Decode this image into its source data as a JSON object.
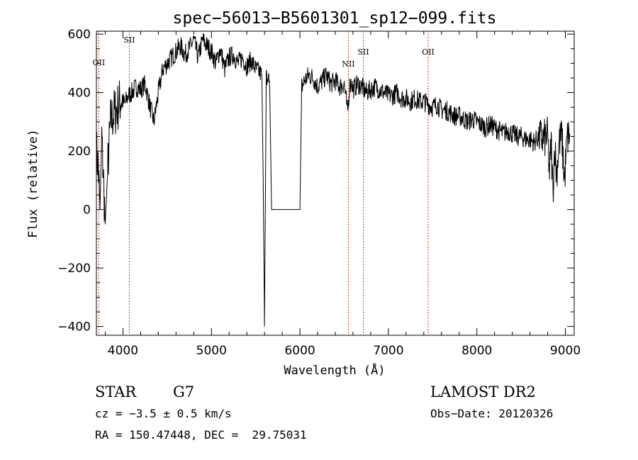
{
  "chart_data": {
    "type": "line",
    "title": "spec−56013−B5601301_sp12−099.fits",
    "xlabel": "Wavelength (Å)",
    "ylabel": "Flux (relative)",
    "xlim": [
      3700,
      9100
    ],
    "ylim": [
      -430,
      610
    ],
    "xticks": [
      4000,
      5000,
      6000,
      7000,
      8000,
      9000
    ],
    "xtick_labels": [
      "4000",
      "5000",
      "6000",
      "7000",
      "8000",
      "9000"
    ],
    "yticks": [
      -400,
      -200,
      0,
      200,
      400,
      600
    ],
    "ytick_labels": [
      "−400",
      "−200",
      "0",
      "200",
      "400",
      "600"
    ],
    "grid": false,
    "line_color": "#000000",
    "line_marker_color": "#cc3322",
    "lines": [
      {
        "label": "OII",
        "wavelength": 3727
      },
      {
        "label": "SII",
        "wavelength": 4072
      },
      {
        "label": "NII",
        "wavelength": 6548
      },
      {
        "label": "SII",
        "wavelength": 6717
      },
      {
        "label": "OII",
        "wavelength": 7450
      }
    ],
    "series": [
      {
        "x": [
          3700,
          3720,
          3740,
          3760,
          3780,
          3800,
          3830,
          3860,
          3900,
          3940,
          3980,
          4020,
          4060,
          4100,
          4150,
          4200,
          4250,
          4300,
          4350,
          4400,
          4450,
          4500,
          4550,
          4600,
          4650,
          4700,
          4750,
          4800,
          4850,
          4900,
          4950,
          5000,
          5050,
          5100,
          5150,
          5200,
          5250,
          5300,
          5350,
          5400,
          5450,
          5500,
          5540,
          5570,
          5585,
          5600,
          5620,
          5640,
          5660,
          5680,
          5700,
          5800,
          5900,
          5980,
          6000,
          6020,
          6050,
          6100,
          6150,
          6200,
          6250,
          6300,
          6350,
          6400,
          6450,
          6500,
          6540,
          6560,
          6580,
          6600,
          6650,
          6700,
          6750,
          6800,
          6850,
          6900,
          6950,
          7000,
          7050,
          7100,
          7150,
          7200,
          7250,
          7300,
          7350,
          7400,
          7450,
          7500,
          7550,
          7600,
          7650,
          7700,
          7750,
          7800,
          7850,
          7900,
          7950,
          8000,
          8050,
          8100,
          8150,
          8200,
          8250,
          8300,
          8350,
          8400,
          8450,
          8500,
          8550,
          8600,
          8650,
          8700,
          8750,
          8800,
          8820,
          8840,
          8860,
          8880,
          8900,
          8930,
          8960,
          8990,
          9020,
          9050
        ],
        "y": [
          200,
          150,
          0,
          250,
          100,
          -50,
          150,
          300,
          330,
          350,
          380,
          360,
          390,
          400,
          420,
          410,
          430,
          360,
          300,
          400,
          480,
          500,
          520,
          540,
          560,
          530,
          550,
          580,
          520,
          580,
          560,
          540,
          500,
          550,
          480,
          520,
          530,
          500,
          520,
          490,
          510,
          480,
          470,
          460,
          100,
          -400,
          450,
          470,
          400,
          0,
          0,
          0,
          0,
          0,
          0,
          420,
          440,
          460,
          450,
          420,
          440,
          460,
          430,
          440,
          420,
          430,
          330,
          420,
          440,
          410,
          430,
          420,
          400,
          410,
          420,
          410,
          400,
          390,
          390,
          400,
          380,
          380,
          370,
          380,
          370,
          370,
          360,
          350,
          360,
          340,
          340,
          330,
          320,
          320,
          310,
          300,
          310,
          300,
          290,
          280,
          290,
          280,
          270,
          260,
          270,
          260,
          250,
          250,
          240,
          240,
          230,
          250,
          240,
          250,
          120,
          230,
          60,
          220,
          120,
          230,
          250,
          100,
          240,
          260
        ]
      }
    ]
  },
  "footer": {
    "object_class": "STAR",
    "subclass": "G7",
    "cz": "cz = −3.5 ± 0.5 km/s",
    "coords": "RA = 150.47448, DEC =  29.75031",
    "survey": "LAMOST DR2",
    "obs_date": "Obs−Date: 20120326"
  }
}
